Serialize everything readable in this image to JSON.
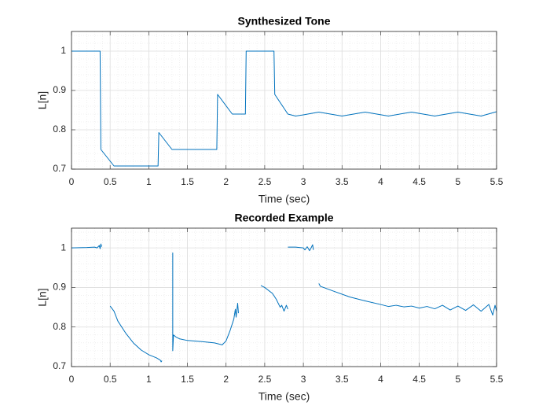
{
  "chart_data": [
    {
      "type": "line",
      "title": "Synthesized Tone",
      "xlabel": "Time (sec)",
      "ylabel": "L[n]",
      "x": [
        0,
        0.37,
        0.38,
        0.55,
        1.12,
        1.13,
        1.3,
        1.88,
        1.89,
        2.08,
        2.25,
        2.26,
        2.62,
        2.63,
        2.8,
        2.9,
        3.0,
        3.2,
        3.5,
        3.8,
        4.1,
        4.4,
        4.7,
        5.0,
        5.3,
        5.5
      ],
      "values": [
        1,
        1,
        0.75,
        0.708,
        0.708,
        0.793,
        0.75,
        0.75,
        0.89,
        0.84,
        0.84,
        1,
        1,
        0.89,
        0.84,
        0.835,
        0.838,
        0.845,
        0.835,
        0.845,
        0.835,
        0.845,
        0.835,
        0.845,
        0.835,
        0.846
      ],
      "color": "#0072bd",
      "xlim": [
        0,
        5.5
      ],
      "ylim": [
        0.7,
        1.05
      ],
      "xticks": [
        0,
        0.5,
        1,
        1.5,
        2,
        2.5,
        3,
        3.5,
        4,
        4.5,
        5,
        5.5
      ],
      "yticks": [
        0.7,
        0.8,
        0.9,
        1
      ],
      "grid": true,
      "minor_grid": true
    },
    {
      "type": "line",
      "title": "Recorded Example",
      "xlabel": "Time (sec)",
      "ylabel": "L[n]",
      "x": [
        0,
        0.2,
        0.3,
        0.33,
        0.36,
        0.37,
        0.38,
        0.39,
        null,
        0.5,
        0.55,
        0.6,
        0.7,
        0.8,
        0.9,
        1.0,
        1.1,
        1.15,
        1.16,
        1.17,
        null,
        1.31,
        1.31,
        1.32,
        1.35,
        1.4,
        1.5,
        1.7,
        1.85,
        1.95,
        2.0,
        2.05,
        2.1,
        2.12,
        2.13,
        2.15,
        2.16,
        null,
        2.45,
        2.5,
        2.6,
        2.65,
        2.7,
        2.72,
        2.75,
        2.78,
        2.8,
        null,
        2.8,
        2.9,
        3.0,
        3.02,
        3.05,
        3.08,
        3.1,
        3.12,
        3.13,
        null,
        3.2,
        3.22,
        3.4,
        3.6,
        3.8,
        4.0,
        4.1,
        4.2,
        4.3,
        4.4,
        4.5,
        4.6,
        4.7,
        4.8,
        4.9,
        5.0,
        5.1,
        5.2,
        5.3,
        5.4,
        5.45,
        5.48,
        5.5
      ],
      "values": [
        1.0,
        1.001,
        1.002,
        1.0,
        1.006,
        0.998,
        1.01,
        1.003,
        null,
        0.853,
        0.84,
        0.815,
        0.785,
        0.76,
        0.742,
        0.73,
        0.722,
        0.716,
        0.712,
        0.715,
        null,
        0.988,
        0.74,
        0.78,
        0.775,
        0.77,
        0.766,
        0.763,
        0.76,
        0.755,
        0.765,
        0.79,
        0.82,
        0.845,
        0.825,
        0.86,
        0.835,
        null,
        0.905,
        0.9,
        0.885,
        0.87,
        0.85,
        0.855,
        0.84,
        0.855,
        0.845,
        null,
        1.002,
        1.002,
        1.0,
        0.995,
        1.003,
        0.993,
        1.0,
        1.008,
        0.995,
        null,
        0.91,
        0.903,
        0.89,
        0.876,
        0.866,
        0.857,
        0.852,
        0.855,
        0.851,
        0.853,
        0.848,
        0.852,
        0.846,
        0.855,
        0.843,
        0.853,
        0.842,
        0.856,
        0.84,
        0.857,
        0.83,
        0.855,
        0.84
      ],
      "color": "#0072bd",
      "xlim": [
        0,
        5.5
      ],
      "ylim": [
        0.7,
        1.05
      ],
      "xticks": [
        0,
        0.5,
        1,
        1.5,
        2,
        2.5,
        3,
        3.5,
        4,
        4.5,
        5,
        5.5
      ],
      "yticks": [
        0.7,
        0.8,
        0.9,
        1
      ],
      "grid": true,
      "minor_grid": true
    }
  ]
}
